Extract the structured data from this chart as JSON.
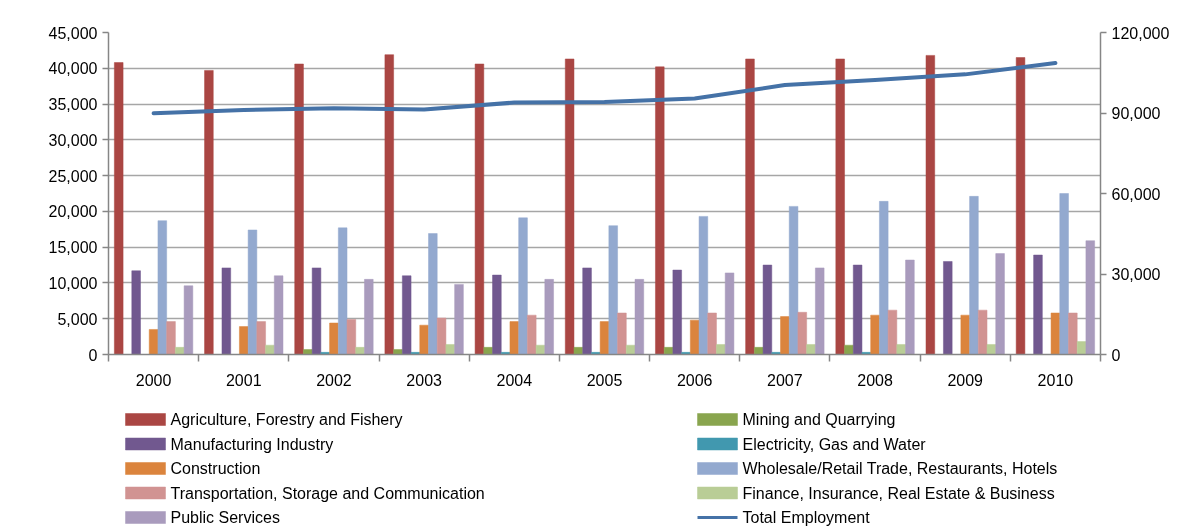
{
  "chart_data": {
    "type": "bar",
    "categories": [
      "2000",
      "2001",
      "2002",
      "2003",
      "2004",
      "2005",
      "2006",
      "2007",
      "2008",
      "2009",
      "2010"
    ],
    "ylim": [
      0,
      45000
    ],
    "yticks": [
      0,
      {
        "value": 5000,
        "label": "5,000"
      },
      {
        "value": 10000,
        "label": "10,000"
      },
      {
        "value": 15000,
        "label": "15,000"
      },
      {
        "value": 20000,
        "label": "20,000"
      },
      {
        "value": 25000,
        "label": "25,000"
      },
      {
        "value": 30000,
        "label": "30,000"
      },
      {
        "value": 35000,
        "label": "35,000"
      },
      {
        "value": 40000,
        "label": "40,000"
      },
      {
        "value": 45000,
        "label": "45,000"
      }
    ],
    "y2lim": [
      0,
      120000
    ],
    "y2ticks": [
      0,
      {
        "value": 30000,
        "label": "30,000"
      },
      {
        "value": 60000,
        "label": "60,000"
      },
      {
        "value": 90000,
        "label": "90,000"
      },
      {
        "value": 120000,
        "label": "120,000"
      }
    ],
    "grid": "y",
    "legend": "bottom",
    "series": [
      {
        "name": "Agriculture, Forestry and Fishery",
        "color": "#aa4643",
        "values": [
          40800,
          39700,
          40600,
          41900,
          40600,
          41300,
          40200,
          41300,
          41300,
          41800,
          41500
        ]
      },
      {
        "name": "Mining and Quarrying",
        "color": "#89a54e",
        "values": [
          null,
          null,
          700,
          700,
          1000,
          1000,
          1000,
          1000,
          1300,
          null,
          null
        ]
      },
      {
        "name": "Manufacturing Industry",
        "color": "#71588f",
        "values": [
          11700,
          12100,
          12100,
          11000,
          11100,
          12100,
          11800,
          12500,
          12500,
          13000,
          13900
        ]
      },
      {
        "name": "Electricity, Gas and Water",
        "color": "#4198af",
        "values": [
          null,
          null,
          300,
          300,
          300,
          300,
          300,
          300,
          300,
          null,
          null
        ]
      },
      {
        "name": "Construction",
        "color": "#db843d",
        "values": [
          3500,
          3900,
          4400,
          4100,
          4600,
          4600,
          4800,
          5300,
          5500,
          5500,
          5800
        ]
      },
      {
        "name": "Wholesale/Retail Trade, Restaurants, Hotels",
        "color": "#93a9cf",
        "values": [
          18700,
          17400,
          17700,
          16900,
          19100,
          18000,
          19300,
          20700,
          21400,
          22100,
          22500
        ]
      },
      {
        "name": "Transportation, Storage and Communication",
        "color": "#d19392",
        "values": [
          4600,
          4600,
          4900,
          5100,
          5500,
          5800,
          5800,
          5900,
          6200,
          6200,
          5800
        ]
      },
      {
        "name": "Finance, Insurance, Real Estate & Business",
        "color": "#b9cd96",
        "values": [
          1000,
          1300,
          1000,
          1400,
          1300,
          1300,
          1400,
          1400,
          1400,
          1400,
          1800
        ]
      },
      {
        "name": "Public Services",
        "color": "#a99bbd",
        "values": [
          9600,
          11000,
          10500,
          9800,
          10500,
          10500,
          11400,
          12100,
          13200,
          14100,
          15900
        ]
      },
      {
        "name": "Total Employment",
        "type": "line",
        "axis": "y2",
        "color": "#4572a7",
        "values": [
          89900,
          91100,
          91800,
          91300,
          93900,
          94100,
          95400,
          100400,
          102300,
          104400,
          108600
        ]
      }
    ]
  }
}
